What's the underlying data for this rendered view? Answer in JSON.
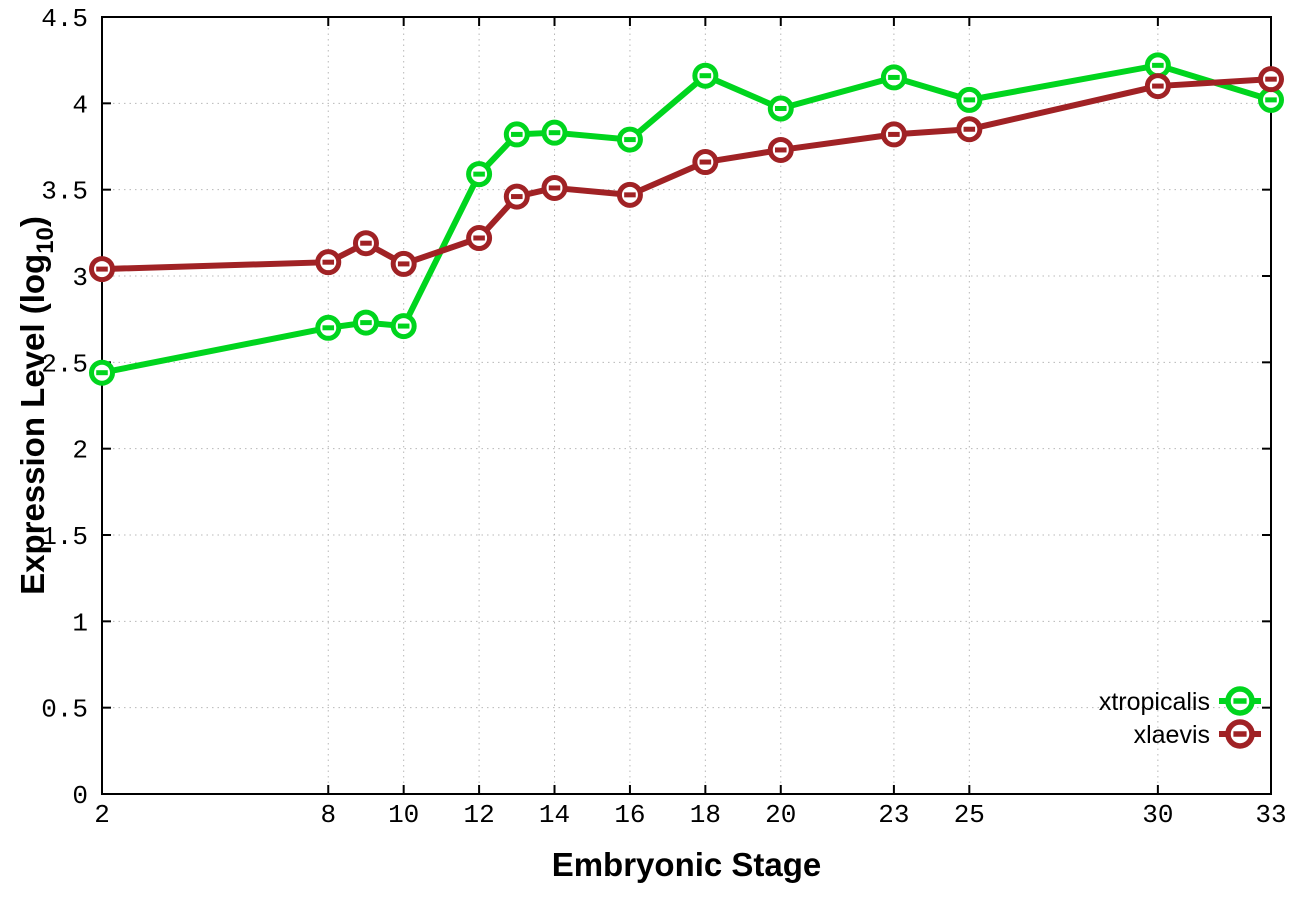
{
  "chart_data": {
    "type": "line",
    "title": "",
    "xlabel": "Embryonic Stage",
    "ylabel": "Expression Level (log10)",
    "ylabel_parts": {
      "prefix": "Expression Level (log",
      "subscript": "10",
      "suffix": ")"
    },
    "xlim": [
      2,
      33
    ],
    "ylim": [
      0,
      4.5
    ],
    "grid": true,
    "x_tick_values": [
      2,
      8,
      10,
      12,
      14,
      16,
      18,
      20,
      23,
      25,
      30,
      33
    ],
    "x_tick_labels": [
      "2",
      "8",
      "10",
      "12",
      "14",
      "16",
      "18",
      "20",
      "23",
      "25",
      "30",
      "33"
    ],
    "y_tick_values": [
      0,
      0.5,
      1,
      1.5,
      2,
      2.5,
      3,
      3.5,
      4,
      4.5
    ],
    "y_tick_labels": [
      "0",
      "0.5",
      "1",
      "1.5",
      "2",
      "2.5",
      "3",
      "3.5",
      "4",
      "4.5"
    ],
    "x": [
      2,
      8,
      9,
      10,
      12,
      13,
      14,
      16,
      18,
      20,
      23,
      25,
      30,
      33
    ],
    "series": [
      {
        "name": "xtropicalis",
        "color": "#00d51e",
        "marker": "open-circle",
        "values": [
          2.44,
          2.7,
          2.73,
          2.71,
          3.59,
          3.82,
          3.83,
          3.79,
          4.16,
          3.97,
          4.15,
          4.02,
          4.22,
          4.02
        ]
      },
      {
        "name": "xlaevis",
        "color": "#a02225",
        "marker": "open-circle",
        "values": [
          3.04,
          3.08,
          3.19,
          3.07,
          3.22,
          3.46,
          3.51,
          3.47,
          3.66,
          3.73,
          3.82,
          3.85,
          4.1,
          4.14
        ]
      }
    ],
    "legend": {
      "position": "inside-bottom-right",
      "entries": [
        "xtropicalis",
        "xlaevis"
      ]
    },
    "colors": {
      "axis": "#000000",
      "text": "#000000",
      "grid": "#b8b8b8",
      "marker_fill": "#ffffff",
      "background": "#ffffff"
    }
  }
}
